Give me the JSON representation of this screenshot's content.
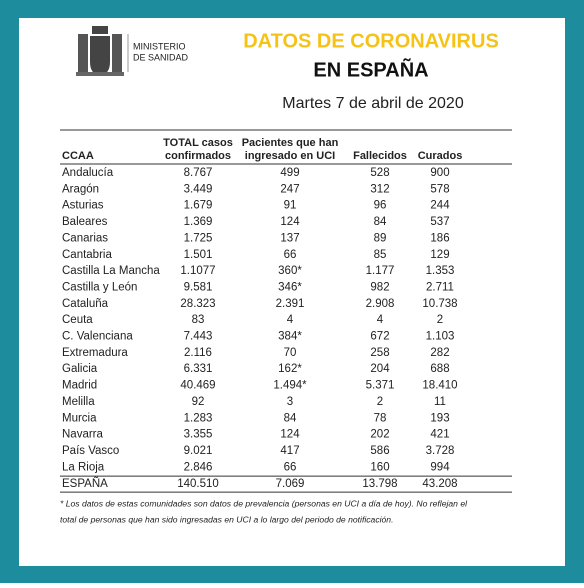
{
  "header": {
    "ministry": [
      "MINISTERIO",
      "DE SANIDAD"
    ],
    "title_line1": "DATOS DE CORONAVIRUS",
    "title_line2": "EN ESPAÑA",
    "date": "Martes 7 de abril de 2020"
  },
  "table": {
    "columns": [
      [
        "CCAA"
      ],
      [
        "TOTAL casos",
        "confirmados"
      ],
      [
        "Pacientes que han",
        "ingresado en UCI"
      ],
      [
        "Fallecidos"
      ],
      [
        "Curados"
      ]
    ],
    "rows": [
      [
        "Andalucía",
        "8.767",
        "499",
        "528",
        "900"
      ],
      [
        "Aragón",
        "3.449",
        "247",
        "312",
        "578"
      ],
      [
        "Asturias",
        "1.679",
        "91",
        "96",
        "244"
      ],
      [
        "Baleares",
        "1.369",
        "124",
        "84",
        "537"
      ],
      [
        "Canarias",
        "1.725",
        "137",
        "89",
        "186"
      ],
      [
        "Cantabria",
        "1.501",
        "66",
        "85",
        "129"
      ],
      [
        "Castilla La Mancha",
        "1.1077",
        "360*",
        "1.177",
        "1.353"
      ],
      [
        "Castilla y León",
        "9.581",
        "346*",
        "982",
        "2.711"
      ],
      [
        "Cataluña",
        "28.323",
        "2.391",
        "2.908",
        "10.738"
      ],
      [
        "Ceuta",
        "83",
        "4",
        "4",
        "2"
      ],
      [
        "C. Valenciana",
        "7.443",
        "384*",
        "672",
        "1.103"
      ],
      [
        "Extremadura",
        "2.116",
        "70",
        "258",
        "282"
      ],
      [
        "Galicia",
        "6.331",
        "162*",
        "204",
        "688"
      ],
      [
        "Madrid",
        "40.469",
        "1.494*",
        "5.371",
        "18.410"
      ],
      [
        "Melilla",
        "92",
        "3",
        "2",
        "11"
      ],
      [
        "Murcia",
        "1.283",
        "84",
        "78",
        "193"
      ],
      [
        "Navarra",
        "3.355",
        "124",
        "202",
        "421"
      ],
      [
        "País Vasco",
        "9.021",
        "417",
        "586",
        "3.728"
      ],
      [
        "La Rioja",
        "2.846",
        "66",
        "160",
        "994"
      ]
    ],
    "total": [
      "ESPAÑA",
      "140.510",
      "7.069",
      "13.798",
      "43.208"
    ]
  },
  "footnote": [
    "* Los datos de estas comunidades son datos de prevalencia (personas en UCI a día de hoy). No reflejan el",
    "total de personas que han sido ingresadas en UCI a lo largo del periodo de notificación."
  ]
}
